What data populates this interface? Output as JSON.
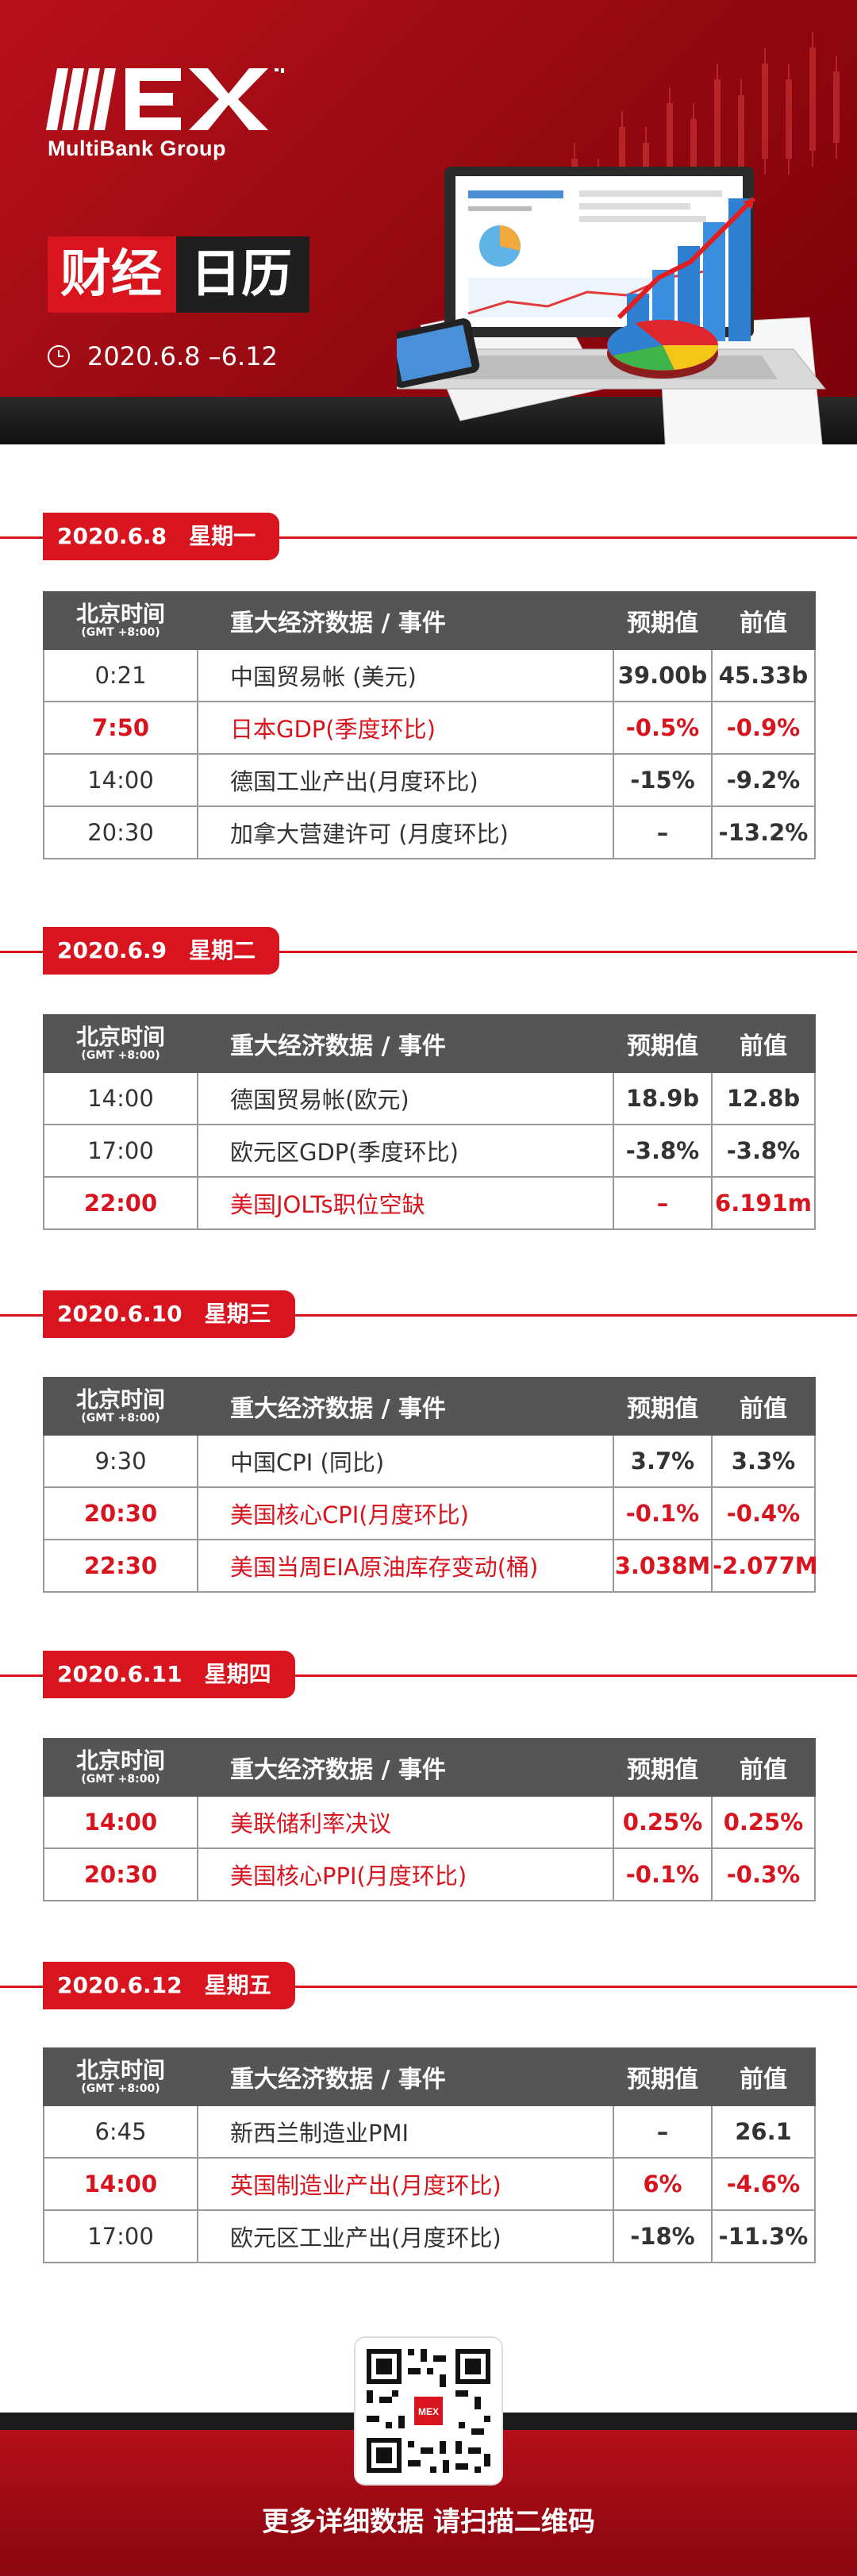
{
  "header": {
    "logo_text": "MEX",
    "logo_group": "MultiBank Group",
    "title_left": "财经",
    "title_right": "日历",
    "date_range": "2020.6.8 –6.12"
  },
  "table_headers": {
    "time": "北京时间",
    "time_sub": "(GMT +8:00)",
    "event": "重大经济数据 / 事件",
    "forecast": "预期值",
    "previous": "前值"
  },
  "days": [
    {
      "date": "2020.6.8",
      "weekday": "星期一",
      "rows": [
        {
          "time": "0:21",
          "event": "中国贸易帐 (美元)",
          "forecast": "39.00b",
          "previous": "45.33b"
        },
        {
          "time": "7:50",
          "event": "日本GDP(季度环比)",
          "forecast": "-0.5%",
          "previous": "-0.9%"
        },
        {
          "time": "14:00",
          "event": "德国工业产出(月度环比)",
          "forecast": "-15%",
          "previous": "-9.2%"
        },
        {
          "time": "20:30",
          "event": "加拿大营建许可 (月度环比)",
          "forecast": "–",
          "previous": "-13.2%"
        }
      ]
    },
    {
      "date": "2020.6.9",
      "weekday": "星期二",
      "rows": [
        {
          "time": "14:00",
          "event": "德国贸易帐(欧元)",
          "forecast": "18.9b",
          "previous": "12.8b"
        },
        {
          "time": "17:00",
          "event": "欧元区GDP(季度环比)",
          "forecast": "-3.8%",
          "previous": "-3.8%"
        },
        {
          "time": "22:00",
          "event": "美国JOLTs职位空缺",
          "forecast": "–",
          "previous": "6.191m"
        }
      ]
    },
    {
      "date": "2020.6.10",
      "weekday": "星期三",
      "rows": [
        {
          "time": "9:30",
          "event": "中国CPI (同比)",
          "forecast": "3.7%",
          "previous": "3.3%"
        },
        {
          "time": "20:30",
          "event": "美国核心CPI(月度环比)",
          "forecast": "-0.1%",
          "previous": "-0.4%"
        },
        {
          "time": "22:30",
          "event": "美国当周EIA原油库存变动(桶)",
          "forecast": "3.038M",
          "previous": "-2.077M"
        }
      ]
    },
    {
      "date": "2020.6.11",
      "weekday": "星期四",
      "rows": [
        {
          "time": "14:00",
          "event": "美联储利率决议",
          "forecast": "0.25%",
          "previous": "0.25%"
        },
        {
          "time": "20:30",
          "event": "美国核心PPI(月度环比)",
          "forecast": "-0.1%",
          "previous": "-0.3%"
        }
      ]
    },
    {
      "date": "2020.6.12",
      "weekday": "星期五",
      "rows": [
        {
          "time": "6:45",
          "event": "新西兰制造业PMI",
          "forecast": "–",
          "previous": "26.1"
        },
        {
          "time": "14:00",
          "event": "英国制造业产出(月度环比)",
          "forecast": "6%",
          "previous": "-4.6%"
        },
        {
          "time": "17:00",
          "event": "欧元区工业产出(月度环比)",
          "forecast": "-18%",
          "previous": "-11.3%"
        }
      ]
    }
  ],
  "footer": {
    "qr_logo": "MEX",
    "cta": "更多详细数据 请扫描二维码"
  },
  "colors": {
    "brand_red": "#d8141e",
    "header_gray": "#555555"
  }
}
